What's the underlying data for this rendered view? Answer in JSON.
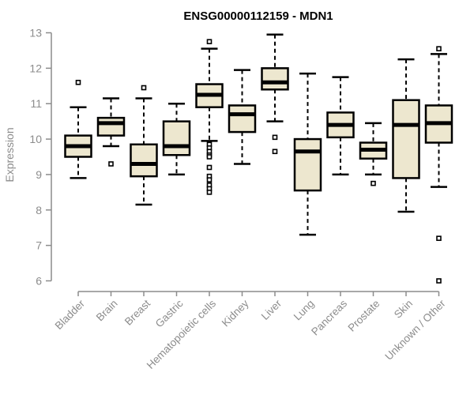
{
  "colors": {
    "box_fill": "#EDE7CF",
    "box_border": "#000000",
    "median": "#000000",
    "whisker": "#000000",
    "outlier_stroke": "#000000",
    "outlier_fill": "#ffffff",
    "axis": "#8c8c8c",
    "tick_label": "#8c8c8c",
    "title": "#000000",
    "background": "#ffffff"
  },
  "chart_data": {
    "type": "boxplot",
    "title": "ENSG00000112159 - MDN1",
    "xlabel": "",
    "ylabel": "Expression",
    "ylim": [
      6,
      13
    ],
    "yticks": [
      6,
      7,
      8,
      9,
      10,
      11,
      12,
      13
    ],
    "grid": "off",
    "legend": "none",
    "categories": [
      "Bladder",
      "Brain",
      "Breast",
      "Gastric",
      "Hematopoietic cells",
      "Kidney",
      "Liver",
      "Lung",
      "Pancreas",
      "Prostate",
      "Skin",
      "Unknown / Other"
    ],
    "series": [
      {
        "category": "Bladder",
        "low": 8.9,
        "q1": 9.5,
        "median": 9.8,
        "q3": 10.1,
        "high": 10.9,
        "outliers": [
          11.6
        ]
      },
      {
        "category": "Brain",
        "low": 9.8,
        "q1": 10.1,
        "median": 10.45,
        "q3": 10.6,
        "high": 11.15,
        "outliers": [
          9.3
        ]
      },
      {
        "category": "Breast",
        "low": 8.15,
        "q1": 8.95,
        "median": 9.3,
        "q3": 9.85,
        "high": 11.15,
        "outliers": [
          11.45
        ]
      },
      {
        "category": "Gastric",
        "low": 9.0,
        "q1": 9.55,
        "median": 9.8,
        "q3": 10.5,
        "high": 11.0,
        "outliers": []
      },
      {
        "category": "Hematopoietic cells",
        "low": 9.95,
        "q1": 10.9,
        "median": 11.25,
        "q3": 11.55,
        "high": 12.55,
        "outliers": [
          12.75,
          9.85,
          9.75,
          9.65,
          9.55,
          9.5,
          9.2,
          8.95,
          8.85,
          8.7,
          8.6,
          8.5
        ]
      },
      {
        "category": "Kidney",
        "low": 9.3,
        "q1": 10.2,
        "median": 10.7,
        "q3": 10.95,
        "high": 11.95,
        "outliers": []
      },
      {
        "category": "Liver",
        "low": 10.5,
        "q1": 11.4,
        "median": 11.6,
        "q3": 12.0,
        "high": 12.95,
        "outliers": [
          10.05,
          9.65
        ]
      },
      {
        "category": "Lung",
        "low": 7.3,
        "q1": 8.55,
        "median": 9.65,
        "q3": 10.0,
        "high": 11.85,
        "outliers": []
      },
      {
        "category": "Pancreas",
        "low": 9.0,
        "q1": 10.05,
        "median": 10.4,
        "q3": 10.75,
        "high": 11.75,
        "outliers": []
      },
      {
        "category": "Prostate",
        "low": 9.0,
        "q1": 9.45,
        "median": 9.7,
        "q3": 9.9,
        "high": 10.45,
        "outliers": [
          8.75
        ]
      },
      {
        "category": "Skin",
        "low": 7.95,
        "q1": 8.9,
        "median": 10.4,
        "q3": 11.1,
        "high": 12.25,
        "outliers": []
      },
      {
        "category": "Unknown / Other",
        "low": 8.65,
        "q1": 9.9,
        "median": 10.45,
        "q3": 10.95,
        "high": 12.4,
        "outliers": [
          12.55,
          7.2,
          6.0
        ]
      }
    ]
  }
}
